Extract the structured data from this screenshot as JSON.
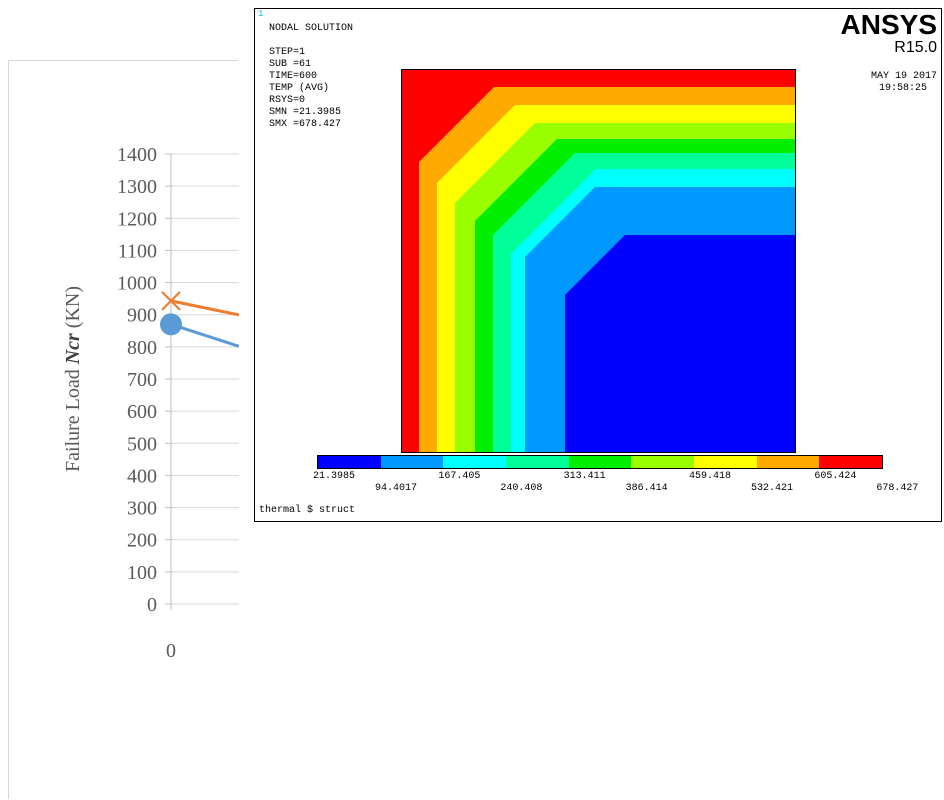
{
  "chart": {
    "y_axis_title": "Failure Load",
    "y_axis_symbol": "Ncr",
    "y_axis_unit": "(KN)",
    "y_ticks": [
      "1400",
      "1300",
      "1200",
      "1100",
      "1000",
      "900",
      "800",
      "700",
      "600",
      "500",
      "400",
      "300",
      "200",
      "100",
      "0"
    ],
    "x_ticks": [
      "0"
    ]
  },
  "chart_data": {
    "type": "line",
    "xlabel": "",
    "ylabel": "Failure Load Ncr (KN)",
    "ylim": [
      0,
      1400
    ],
    "x": [
      0
    ],
    "series": [
      {
        "marker": "x",
        "color": "#ED7D31",
        "values": [
          943
        ]
      },
      {
        "marker": "circle",
        "color": "#5B9BD5",
        "values": [
          870
        ]
      }
    ]
  },
  "ansys": {
    "window_number": "1",
    "logo": "ANSYS",
    "version": "R15.0",
    "date": "MAY 19 2017",
    "time": "19:58:25",
    "header_lines": [
      "NODAL SOLUTION",
      "",
      "STEP=1",
      "SUB =61",
      "TIME=600",
      "TEMP      (AVG)",
      "RSYS=0",
      "SMN =21.3985",
      "SMX =678.427"
    ],
    "legend_colors": [
      "#0000ff",
      "#0099ff",
      "#00ffff",
      "#00ff99",
      "#00ee00",
      "#99ff00",
      "#ffff00",
      "#ffaa00",
      "#ff0000"
    ],
    "legend_values_top": [
      "21.3985",
      "167.405",
      "313.411",
      "459.418",
      "605.424"
    ],
    "legend_values_bottom": [
      "94.4017",
      "240.408",
      "386.414",
      "532.421",
      "678.427"
    ],
    "footer": "thermal $ struct"
  }
}
